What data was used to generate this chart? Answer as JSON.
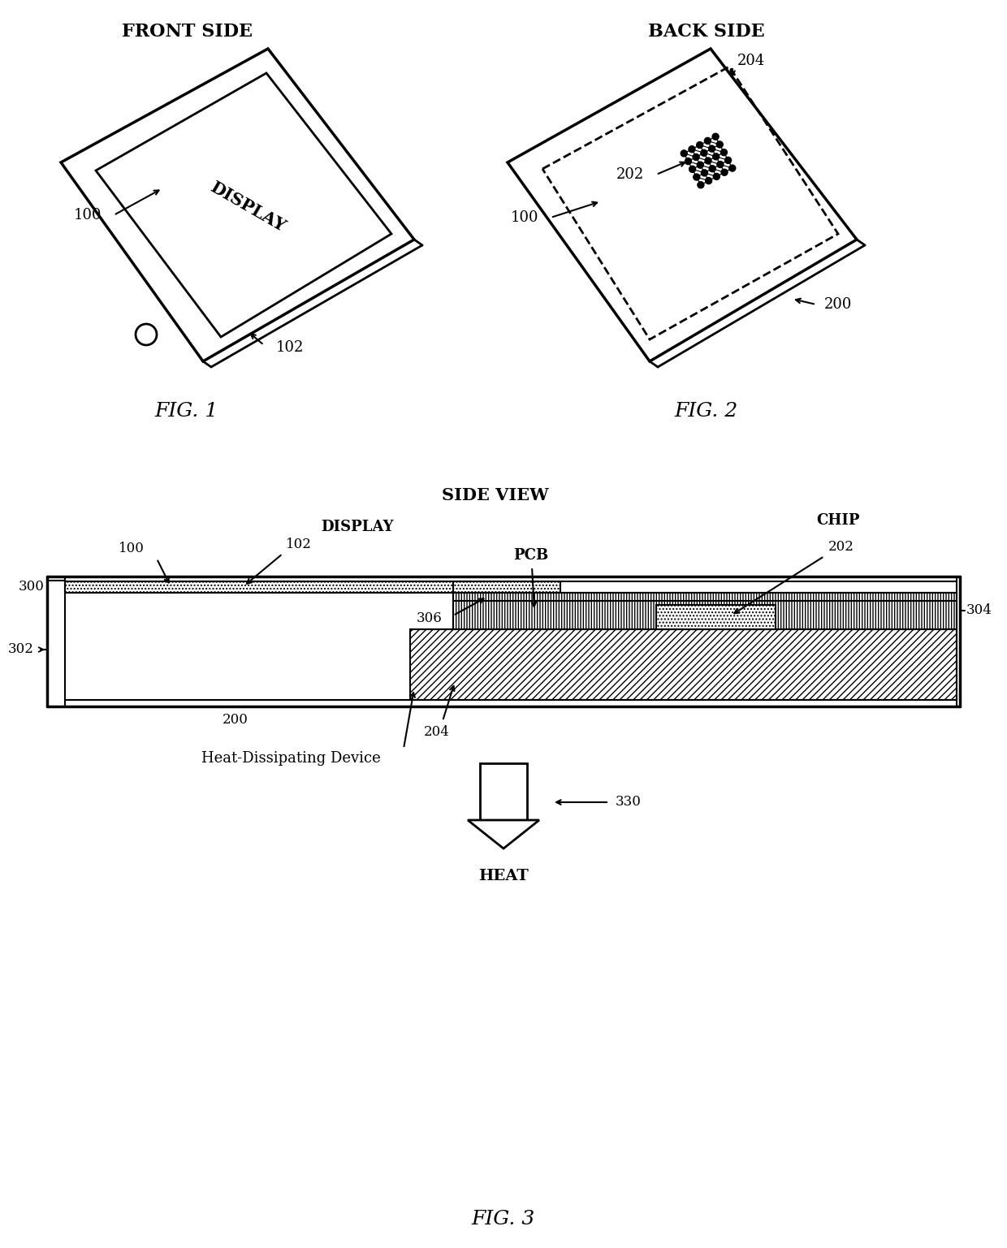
{
  "bg_color": "#ffffff",
  "line_color": "#000000",
  "fig_width": 12.4,
  "fig_height": 15.37,
  "title1": "FRONT SIDE",
  "title2": "BACK SIDE",
  "fig1_label": "FIG. 1",
  "fig2_label": "FIG. 2",
  "fig3_label": "FIG. 3",
  "side_view_label": "SIDE VIEW",
  "display_label": "DISPLAY",
  "chip_label": "CHIP",
  "pcb_label": "PCB",
  "heat_label": "HEAT",
  "heat_device_label": "Heat-Dissipating Device",
  "ref_100": "100",
  "ref_102": "102",
  "ref_200": "200",
  "ref_202": "202",
  "ref_204": "204",
  "ref_300": "300",
  "ref_302": "302",
  "ref_304": "304",
  "ref_306": "306",
  "ref_330": "330"
}
